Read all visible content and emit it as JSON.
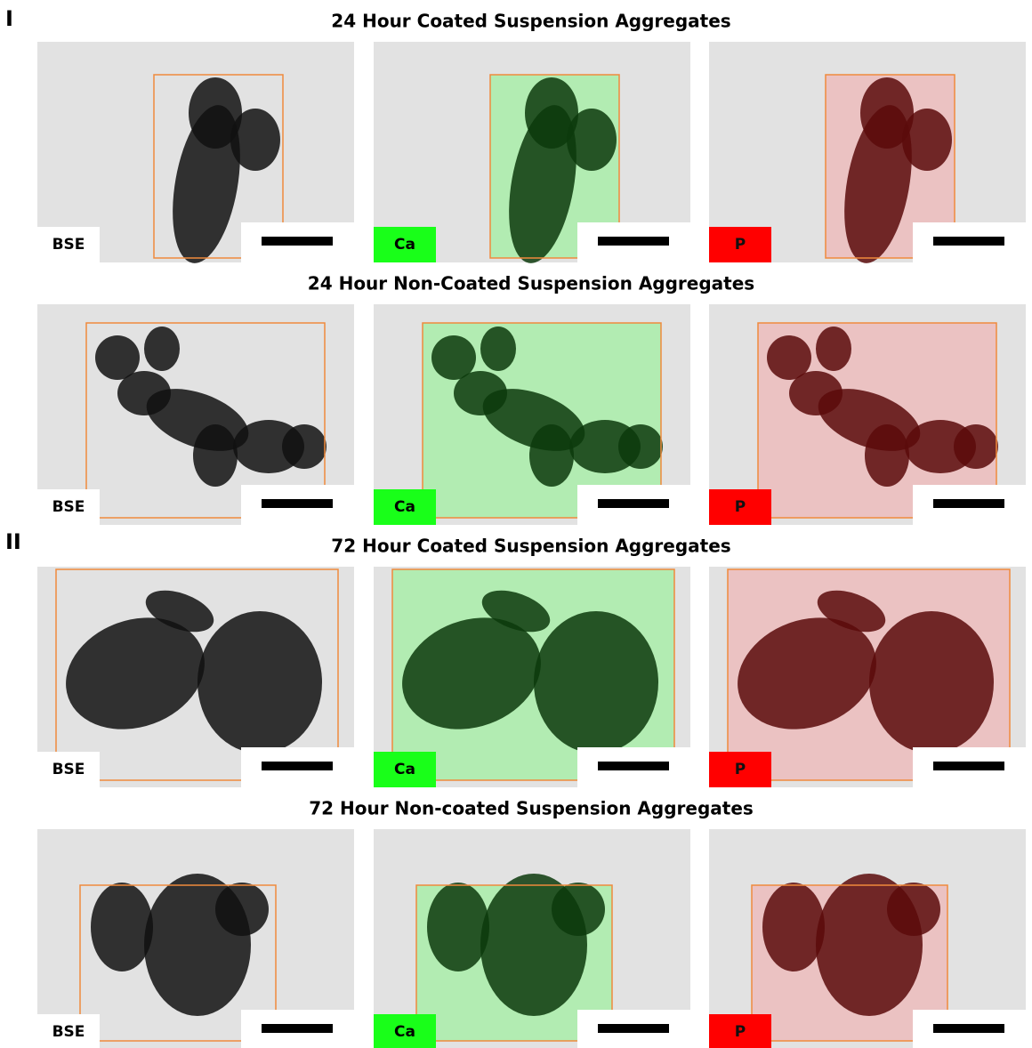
{
  "sections": [
    {
      "label": "I",
      "rows": [
        {
          "title": "24 Hour Coated Suspension Aggregates",
          "panels": [
            {
              "label": "BSE"
            },
            {
              "label": "Ca"
            },
            {
              "label": "P"
            }
          ]
        },
        {
          "title": "24 Hour Non-Coated Suspension Aggregates",
          "panels": [
            {
              "label": "BSE"
            },
            {
              "label": "Ca"
            },
            {
              "label": "P"
            }
          ]
        }
      ]
    },
    {
      "label": "II",
      "rows": [
        {
          "title": "72 Hour Coated Suspension Aggregates",
          "panels": [
            {
              "label": "BSE"
            },
            {
              "label": "Ca"
            },
            {
              "label": "P"
            }
          ]
        },
        {
          "title": "72 Hour Non-coated Suspension Aggregates",
          "panels": [
            {
              "label": "BSE"
            },
            {
              "label": "Ca"
            },
            {
              "label": "P"
            }
          ]
        }
      ]
    }
  ]
}
